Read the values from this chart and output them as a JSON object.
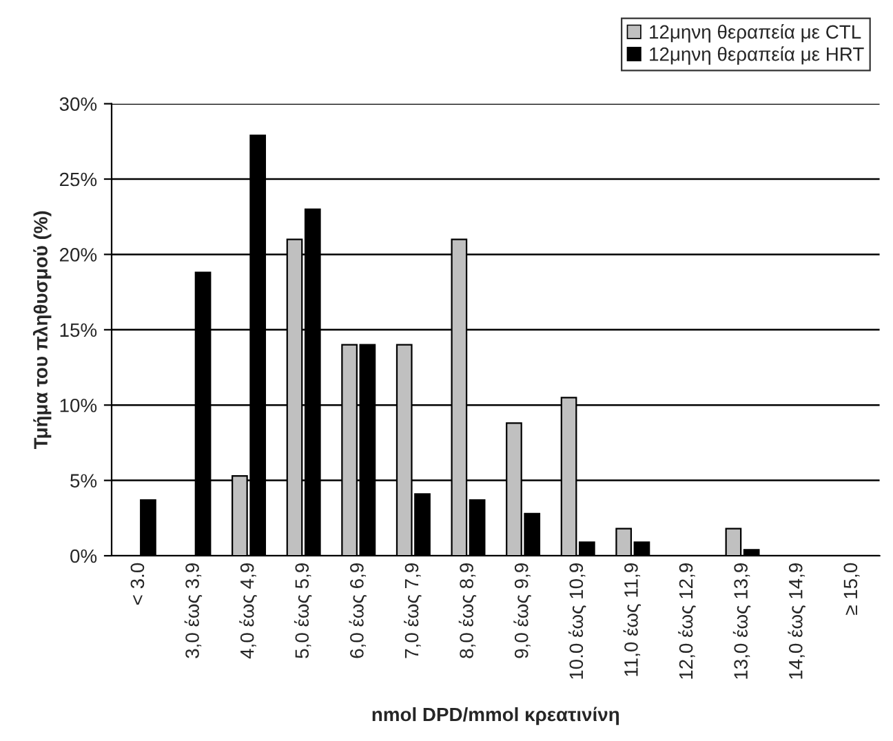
{
  "chart_data": {
    "type": "bar",
    "xlabel": "nmol DPD/mmol κρεατινίνη",
    "ylabel": "Τμήμα του πληθυσμού (%)",
    "categories": [
      "< 3.0",
      "3,0 έως 3,9",
      "4,0 έως 4,9",
      "5,0 έως 5,9",
      "6,0 έως 6,9",
      "7,0 έως 7,9",
      "8,0 έως 8,9",
      "9,0 έως 9,9",
      "10.0 έως 10,9",
      "11,0 έως 11,9",
      "12,0 έως 12,9",
      "13,0 έως 13,9",
      "14,0 έως 14,9",
      "≥ 15,0"
    ],
    "series": [
      {
        "name": "12μηνη θεραπεία με CTL",
        "color": "#c0c0c0",
        "values": [
          null,
          null,
          5.3,
          21,
          14,
          14,
          21,
          8.8,
          10.5,
          1.8,
          null,
          1.8,
          null,
          null
        ]
      },
      {
        "name": "12μηνη θεραπεία με HRT",
        "color": "#000000",
        "values": [
          3.7,
          18.8,
          27.9,
          23,
          14,
          4.1,
          3.7,
          2.8,
          0.9,
          0.9,
          null,
          0.4,
          null,
          null
        ]
      }
    ],
    "ylim": [
      0,
      30
    ],
    "yticks": [
      {
        "value": 0,
        "label": "0%"
      },
      {
        "value": 5,
        "label": "5%"
      },
      {
        "value": 10,
        "label": "10%"
      },
      {
        "value": 15,
        "label": "15%"
      },
      {
        "value": 20,
        "label": "20%"
      },
      {
        "value": 25,
        "label": "25%"
      },
      {
        "value": 30,
        "label": "30%"
      }
    ],
    "grid": "y",
    "legend": "top right"
  }
}
